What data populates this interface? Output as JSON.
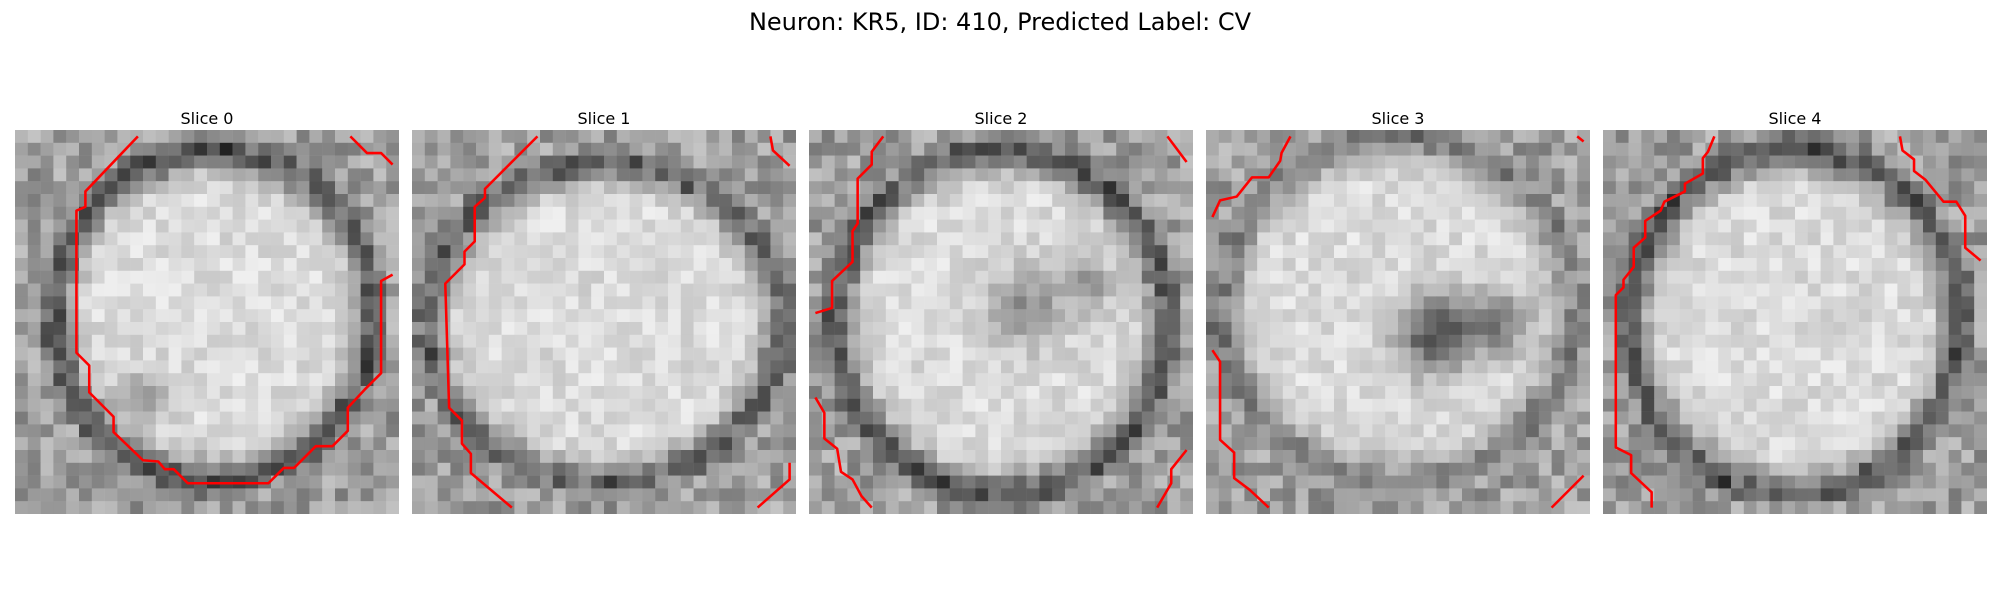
{
  "figure": {
    "title": "Neuron: KR5, ID: 410, Predicted Label: CV"
  },
  "overlay": {
    "contour_color": "#ff0000",
    "colormap": "gray"
  },
  "panels": [
    {
      "title": "Slice 0"
    },
    {
      "title": "Slice 1"
    },
    {
      "title": "Slice 2"
    },
    {
      "title": "Slice 3"
    },
    {
      "title": "Slice 4"
    }
  ]
}
